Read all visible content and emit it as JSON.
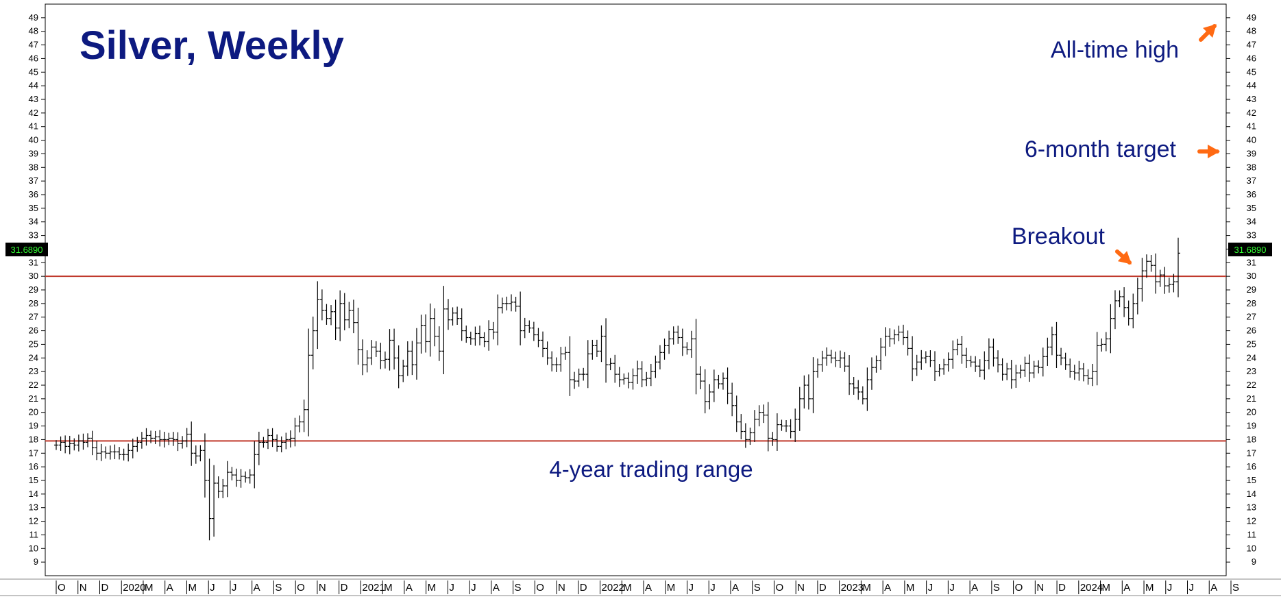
{
  "chart_data": {
    "type": "ohlc",
    "title": "Silver, Weekly",
    "ylim": [
      8,
      50
    ],
    "y_ticks": [
      9,
      10,
      11,
      12,
      13,
      14,
      15,
      16,
      17,
      18,
      19,
      20,
      21,
      22,
      23,
      24,
      25,
      26,
      27,
      28,
      29,
      30,
      31,
      32,
      33,
      34,
      35,
      36,
      37,
      38,
      39,
      40,
      41,
      42,
      43,
      44,
      45,
      46,
      47,
      48,
      49
    ],
    "x_labels": [
      "O",
      "N",
      "D",
      "2020",
      "M",
      "A",
      "M",
      "J",
      "J",
      "A",
      "S",
      "O",
      "N",
      "D",
      "2021",
      "M",
      "A",
      "M",
      "J",
      "J",
      "A",
      "S",
      "O",
      "N",
      "D",
      "2022",
      "M",
      "A",
      "M",
      "J",
      "J",
      "A",
      "S",
      "O",
      "N",
      "D",
      "2023",
      "M",
      "A",
      "M",
      "J",
      "J",
      "A",
      "S",
      "O",
      "N",
      "D",
      "2024",
      "M",
      "A",
      "M",
      "J",
      "J",
      "A",
      "S"
    ],
    "last_price": "31.6890",
    "horizontal_lines": [
      {
        "value": 30.0,
        "color": "#c0392b"
      },
      {
        "value": 17.9,
        "color": "#c0392b"
      }
    ],
    "annotations": [
      {
        "text": "All-time high",
        "value": 49.8,
        "arrow": "up-right"
      },
      {
        "text": "6-month target",
        "value": 39.0,
        "arrow": "right"
      },
      {
        "text": "Breakout",
        "value": 30.3,
        "arrow": "down-right"
      },
      {
        "text": "4-year trading range",
        "value": 16.0,
        "arrow": "none"
      }
    ],
    "series": [
      {
        "month_index": 0,
        "weekly_closes": [
          17.6,
          17.8,
          17.5,
          17.7,
          17.6,
          17.9,
          17.8,
          18.1,
          17.4,
          17.0,
          17.1,
          17.0,
          17.1,
          17.1,
          16.9,
          16.9,
          17.2,
          17.5,
          17.8,
          18.1,
          18.3,
          18.1,
          18.2,
          18.0,
          18.0,
          18.1,
          18.0,
          17.7,
          17.9,
          18.4,
          17.0,
          16.8,
          17.2,
          15.0,
          12.2,
          14.8,
          14.2,
          14.6,
          15.6,
          15.4,
          15.0,
          15.3,
          15.2,
          15.4,
          16.9,
          17.8,
          17.8,
          18.3,
          18.0,
          17.5,
          17.8,
          18.0,
          18.1,
          19.0,
          19.3,
          20.2,
          24.2,
          26.0,
          28.3,
          27.5,
          26.9,
          27.4,
          26.2,
          28.0,
          26.8,
          27.5,
          26.6,
          24.6,
          23.5,
          24.0,
          24.8,
          24.5,
          23.8,
          23.9,
          25.3,
          24.0,
          22.7,
          23.4,
          24.5,
          23.5,
          25.1,
          26.4,
          25.2,
          26.9,
          25.6,
          24.5,
          27.6,
          26.8,
          27.3,
          26.9,
          26.0,
          25.5,
          25.4,
          25.8,
          25.5,
          25.2,
          26.1,
          25.9,
          27.7,
          28.0,
          28.0,
          28.1,
          27.8,
          26.0,
          26.4,
          26.2,
          25.7,
          25.3,
          24.7,
          24.0,
          23.5,
          23.5,
          24.3,
          24.4,
          22.4,
          22.3,
          22.8,
          22.8,
          24.3,
          24.9,
          24.5,
          25.6,
          23.5,
          23.6,
          22.8,
          22.4,
          22.5,
          22.2,
          22.7,
          23.2,
          22.4,
          22.5,
          23.0,
          23.7,
          24.4,
          24.9,
          25.4,
          25.9,
          25.5,
          24.8,
          24.6,
          25.4,
          22.8,
          22.3,
          20.8,
          21.5,
          22.4,
          22.1,
          22.5,
          21.4,
          20.5,
          19.3,
          18.6,
          18.0,
          18.5,
          19.5,
          20.0,
          19.8,
          18.1,
          18.0,
          19.1,
          19.0,
          19.0,
          18.6,
          19.5,
          21.0,
          22.0,
          21.0,
          23.0,
          23.5,
          24.0,
          24.2,
          24.0,
          23.8,
          24.0,
          23.4,
          22.1,
          21.8,
          21.5,
          21.0,
          22.4,
          23.3,
          23.8,
          24.8,
          25.6,
          25.4,
          25.7,
          25.9,
          25.5,
          24.7,
          23.2,
          23.7,
          24.0,
          24.1,
          23.8,
          23.0,
          23.2,
          23.5,
          23.9,
          24.6,
          25.0,
          24.2,
          23.8,
          23.7,
          23.4,
          23.1,
          23.8,
          24.8,
          24.0,
          23.5,
          22.8,
          23.2,
          22.4,
          22.9,
          23.1,
          23.6,
          22.9,
          23.4,
          23.3,
          24.1,
          24.8,
          25.7,
          24.2,
          24.0,
          23.5,
          23.0,
          22.9,
          23.2,
          22.7,
          22.5,
          23.0,
          24.9,
          25.0,
          25.4,
          26.9,
          28.2,
          28.5,
          27.7,
          26.9,
          28.0,
          29.1,
          30.4,
          31.1,
          30.8,
          29.6,
          30.1,
          29.3,
          29.4,
          29.6,
          31.7
        ]
      }
    ]
  },
  "colors": {
    "bars": "#000000",
    "range_lines": "#c0392b",
    "text": "#0d1a80",
    "arrows": "#ff6a13",
    "price_box_bg": "#000000",
    "price_box_fg": "#33ff33"
  }
}
